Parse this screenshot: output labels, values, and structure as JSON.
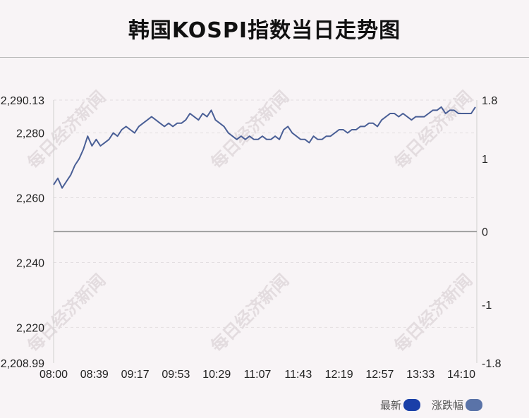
{
  "title": "韩国KOSPI指数当日走势图",
  "watermark": "每日经济新闻",
  "legend": [
    {
      "label": "最新",
      "color": "#1a3fa8"
    },
    {
      "label": "涨跌幅",
      "color": "#5a73a8"
    }
  ],
  "colors": {
    "line": "#4a5f96",
    "zero_line": "#999999",
    "grid": "#e2dde0"
  },
  "chart_data": {
    "type": "line",
    "title": "韩国KOSPI指数当日走势图",
    "xlabel": "",
    "ylabel": "",
    "x_ticks": [
      "08:00",
      "08:39",
      "09:17",
      "09:53",
      "10:29",
      "11:07",
      "11:43",
      "12:19",
      "12:57",
      "13:33",
      "14:10"
    ],
    "y_left": {
      "range": [
        2208.99,
        2290.13
      ],
      "ticks": [
        "2,290.13",
        "2,280",
        "2,260",
        "2,240",
        "2,220",
        "2,208.99"
      ],
      "tick_values": [
        2290.13,
        2280,
        2260,
        2240,
        2220,
        2208.99
      ]
    },
    "y_right": {
      "range": [
        -1.8,
        1.8
      ],
      "ticks": [
        "1.8",
        "1",
        "0",
        "-1",
        "-1.8"
      ],
      "tick_values": [
        1.8,
        1,
        0,
        -1,
        -1.8
      ]
    },
    "baseline": 2249.56,
    "series": [
      {
        "name": "最新",
        "points": [
          [
            0,
            2264
          ],
          [
            1,
            2266
          ],
          [
            2,
            2263
          ],
          [
            3,
            2265
          ],
          [
            4,
            2267
          ],
          [
            5,
            2270
          ],
          [
            6,
            2272
          ],
          [
            7,
            2275
          ],
          [
            8,
            2279
          ],
          [
            9,
            2276
          ],
          [
            10,
            2278
          ],
          [
            11,
            2276
          ],
          [
            12,
            2277
          ],
          [
            13,
            2278
          ],
          [
            14,
            2280
          ],
          [
            15,
            2279
          ],
          [
            16,
            2281
          ],
          [
            17,
            2282
          ],
          [
            18,
            2281
          ],
          [
            19,
            2280
          ],
          [
            20,
            2282
          ],
          [
            21,
            2283
          ],
          [
            22,
            2284
          ],
          [
            23,
            2285
          ],
          [
            24,
            2284
          ],
          [
            25,
            2283
          ],
          [
            26,
            2282
          ],
          [
            27,
            2283
          ],
          [
            28,
            2282
          ],
          [
            29,
            2283
          ],
          [
            30,
            2283
          ],
          [
            31,
            2284
          ],
          [
            32,
            2286
          ],
          [
            33,
            2285
          ],
          [
            34,
            2284
          ],
          [
            35,
            2286
          ],
          [
            36,
            2285
          ],
          [
            37,
            2287
          ],
          [
            38,
            2284
          ],
          [
            39,
            2283
          ],
          [
            40,
            2282
          ],
          [
            41,
            2280
          ],
          [
            42,
            2279
          ],
          [
            43,
            2278
          ],
          [
            44,
            2279
          ],
          [
            45,
            2278
          ],
          [
            46,
            2279
          ],
          [
            47,
            2278
          ],
          [
            48,
            2278
          ],
          [
            49,
            2279
          ],
          [
            50,
            2278
          ],
          [
            51,
            2278
          ],
          [
            52,
            2279
          ],
          [
            53,
            2278
          ],
          [
            54,
            2281
          ],
          [
            55,
            2282
          ],
          [
            56,
            2280
          ],
          [
            57,
            2279
          ],
          [
            58,
            2278
          ],
          [
            59,
            2278
          ],
          [
            60,
            2277
          ],
          [
            61,
            2279
          ],
          [
            62,
            2278
          ],
          [
            63,
            2278
          ],
          [
            64,
            2279
          ],
          [
            65,
            2279
          ],
          [
            66,
            2280
          ],
          [
            67,
            2281
          ],
          [
            68,
            2281
          ],
          [
            69,
            2280
          ],
          [
            70,
            2281
          ],
          [
            71,
            2281
          ],
          [
            72,
            2282
          ],
          [
            73,
            2282
          ],
          [
            74,
            2283
          ],
          [
            75,
            2283
          ],
          [
            76,
            2282
          ],
          [
            77,
            2284
          ],
          [
            78,
            2285
          ],
          [
            79,
            2286
          ],
          [
            80,
            2286
          ],
          [
            81,
            2285
          ],
          [
            82,
            2286
          ],
          [
            83,
            2285
          ],
          [
            84,
            2284
          ],
          [
            85,
            2285
          ],
          [
            86,
            2285
          ],
          [
            87,
            2285
          ],
          [
            88,
            2286
          ],
          [
            89,
            2287
          ],
          [
            90,
            2287
          ],
          [
            91,
            2288
          ],
          [
            92,
            2286
          ],
          [
            93,
            2287
          ],
          [
            94,
            2287
          ],
          [
            95,
            2286
          ],
          [
            96,
            2286
          ],
          [
            97,
            2286
          ],
          [
            98,
            2286
          ],
          [
            99,
            2288
          ]
        ]
      }
    ]
  }
}
